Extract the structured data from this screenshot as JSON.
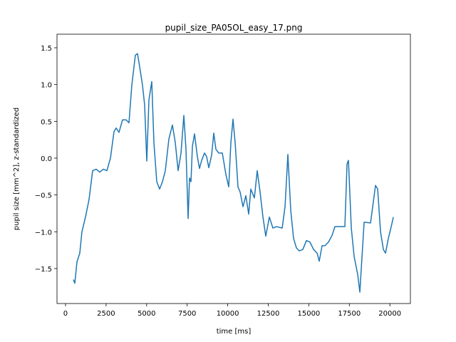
{
  "chart_data": {
    "type": "line",
    "title": "pupil_size_PA05OL_easy_17.png",
    "x_label": "time [ms]",
    "y_label": "pupil size [mm^2], z-standardized",
    "x": [
      483,
      571,
      703,
      879,
      1010,
      1230,
      1450,
      1670,
      1890,
      2109,
      2329,
      2548,
      2768,
      2988,
      3120,
      3295,
      3515,
      3735,
      3911,
      4086,
      4306,
      4438,
      4614,
      4746,
      4877,
      5009,
      5141,
      5317,
      5449,
      5625,
      5800,
      5976,
      6152,
      6372,
      6591,
      6767,
      6943,
      7119,
      7295,
      7426,
      7558,
      7646,
      7734,
      7822,
      7953,
      8129,
      8261,
      8393,
      8568,
      8700,
      8832,
      9008,
      9140,
      9271,
      9447,
      9667,
      9887,
      10062,
      10194,
      10326,
      10458,
      10633,
      10765,
      10941,
      11117,
      11293,
      11424,
      11644,
      11820,
      11996,
      12172,
      12347,
      12567,
      12787,
      13007,
      13358,
      13534,
      13710,
      13886,
      14061,
      14237,
      14413,
      14633,
      14852,
      15072,
      15292,
      15511,
      15643,
      15819,
      15995,
      16214,
      16434,
      16610,
      17225,
      17357,
      17445,
      17621,
      17797,
      18016,
      18148,
      18280,
      18412,
      18807,
      18939,
      19115,
      19247,
      19423,
      19599,
      19730,
      19906,
      20082,
      20214
    ],
    "series": [
      {
        "color": "#1f77b4",
        "values": [
          -1.65,
          -1.7,
          -1.41,
          -1.29,
          -1.0,
          -0.8,
          -0.56,
          -0.17,
          -0.15,
          -0.19,
          -0.15,
          -0.17,
          0,
          0.36,
          0.41,
          0.35,
          0.52,
          0.52,
          0.48,
          0.99,
          1.4,
          1.42,
          1.18,
          0.99,
          0.72,
          -0.04,
          0.79,
          1.04,
          0.21,
          -0.32,
          -0.42,
          -0.32,
          -0.17,
          0.26,
          0.45,
          0.21,
          -0.17,
          0.07,
          0.58,
          0.12,
          -0.82,
          -0.27,
          -0.32,
          0.16,
          0.33,
          0.02,
          -0.14,
          -0.03,
          0.07,
          0.02,
          -0.13,
          0.04,
          0.34,
          0.12,
          0.07,
          0.07,
          -0.22,
          -0.39,
          0.21,
          0.53,
          0.21,
          -0.39,
          -0.46,
          -0.66,
          -0.51,
          -0.76,
          -0.42,
          -0.54,
          -0.17,
          -0.46,
          -0.8,
          -1.06,
          -0.8,
          -0.95,
          -0.93,
          -0.95,
          -0.66,
          0.05,
          -0.71,
          -1.09,
          -1.22,
          -1.26,
          -1.24,
          -1.12,
          -1.14,
          -1.24,
          -1.29,
          -1.4,
          -1.19,
          -1.19,
          -1.14,
          -1.05,
          -0.93,
          -0.93,
          -0.08,
          -0.03,
          -0.95,
          -1.34,
          -1.58,
          -1.82,
          -1.34,
          -0.87,
          -0.88,
          -0.66,
          -0.37,
          -0.42,
          -1.0,
          -1.24,
          -1.29,
          -1.09,
          -0.93,
          -0.8
        ]
      }
    ],
    "xlim": [
      -527,
      21265
    ],
    "ylim": [
      -1.975,
      1.684
    ],
    "xticks": [
      0,
      2500,
      5000,
      7500,
      10000,
      12500,
      15000,
      17500,
      20000
    ],
    "yticks": [
      {
        "value": -1.5,
        "label": "−1.5"
      },
      {
        "value": -1.0,
        "label": "−1.0"
      },
      {
        "value": -0.5,
        "label": "−0.5"
      },
      {
        "value": 0,
        "label": "0.0"
      },
      0.5,
      {
        "value": 1.0,
        "label": "1.0"
      },
      1.5
    ]
  }
}
